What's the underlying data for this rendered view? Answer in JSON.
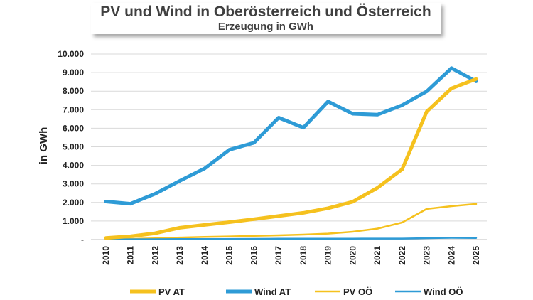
{
  "chart_data": {
    "type": "line",
    "title": "PV und Wind in Oberösterreich und Österreich",
    "subtitle": "Erzeugung in GWh",
    "ylabel": "in GWh",
    "xlabel": "",
    "ylim": [
      0,
      10000
    ],
    "yticks": [
      0,
      1000,
      2000,
      3000,
      4000,
      5000,
      6000,
      7000,
      8000,
      9000,
      10000
    ],
    "ytick_labels": [
      "-",
      "1.000",
      "2.000",
      "3.000",
      "4.000",
      "5.000",
      "6.000",
      "7.000",
      "8.000",
      "9.000",
      "10.000"
    ],
    "grid": true,
    "legend_position": "bottom",
    "categories": [
      "2010",
      "2011",
      "2012",
      "2013",
      "2014",
      "2015",
      "2016",
      "2017",
      "2018",
      "2019",
      "2020",
      "2021",
      "2022",
      "2023",
      "2024",
      "2025"
    ],
    "series": [
      {
        "name": "PV AT",
        "color": "#F5C11E",
        "width": 5,
        "values": [
          90,
          175,
          340,
          640,
          790,
          940,
          1100,
          1270,
          1440,
          1690,
          2040,
          2790,
          3780,
          6900,
          8150,
          8650
        ]
      },
      {
        "name": "Wind AT",
        "color": "#2E9BD6",
        "width": 5,
        "values": [
          2050,
          1930,
          2470,
          3170,
          3830,
          4840,
          5220,
          6570,
          6030,
          7440,
          6780,
          6730,
          7240,
          7990,
          9240,
          8530
        ]
      },
      {
        "name": "PV OÖ",
        "color": "#F5C11E",
        "width": 2.5,
        "values": [
          20,
          40,
          70,
          110,
          140,
          170,
          200,
          230,
          270,
          320,
          420,
          590,
          920,
          1650,
          1800,
          1920
        ]
      },
      {
        "name": "Wind OÖ",
        "color": "#2E9BD6",
        "width": 2.5,
        "values": [
          15,
          15,
          20,
          25,
          30,
          35,
          40,
          45,
          45,
          50,
          50,
          55,
          55,
          75,
          95,
          85
        ]
      }
    ]
  }
}
